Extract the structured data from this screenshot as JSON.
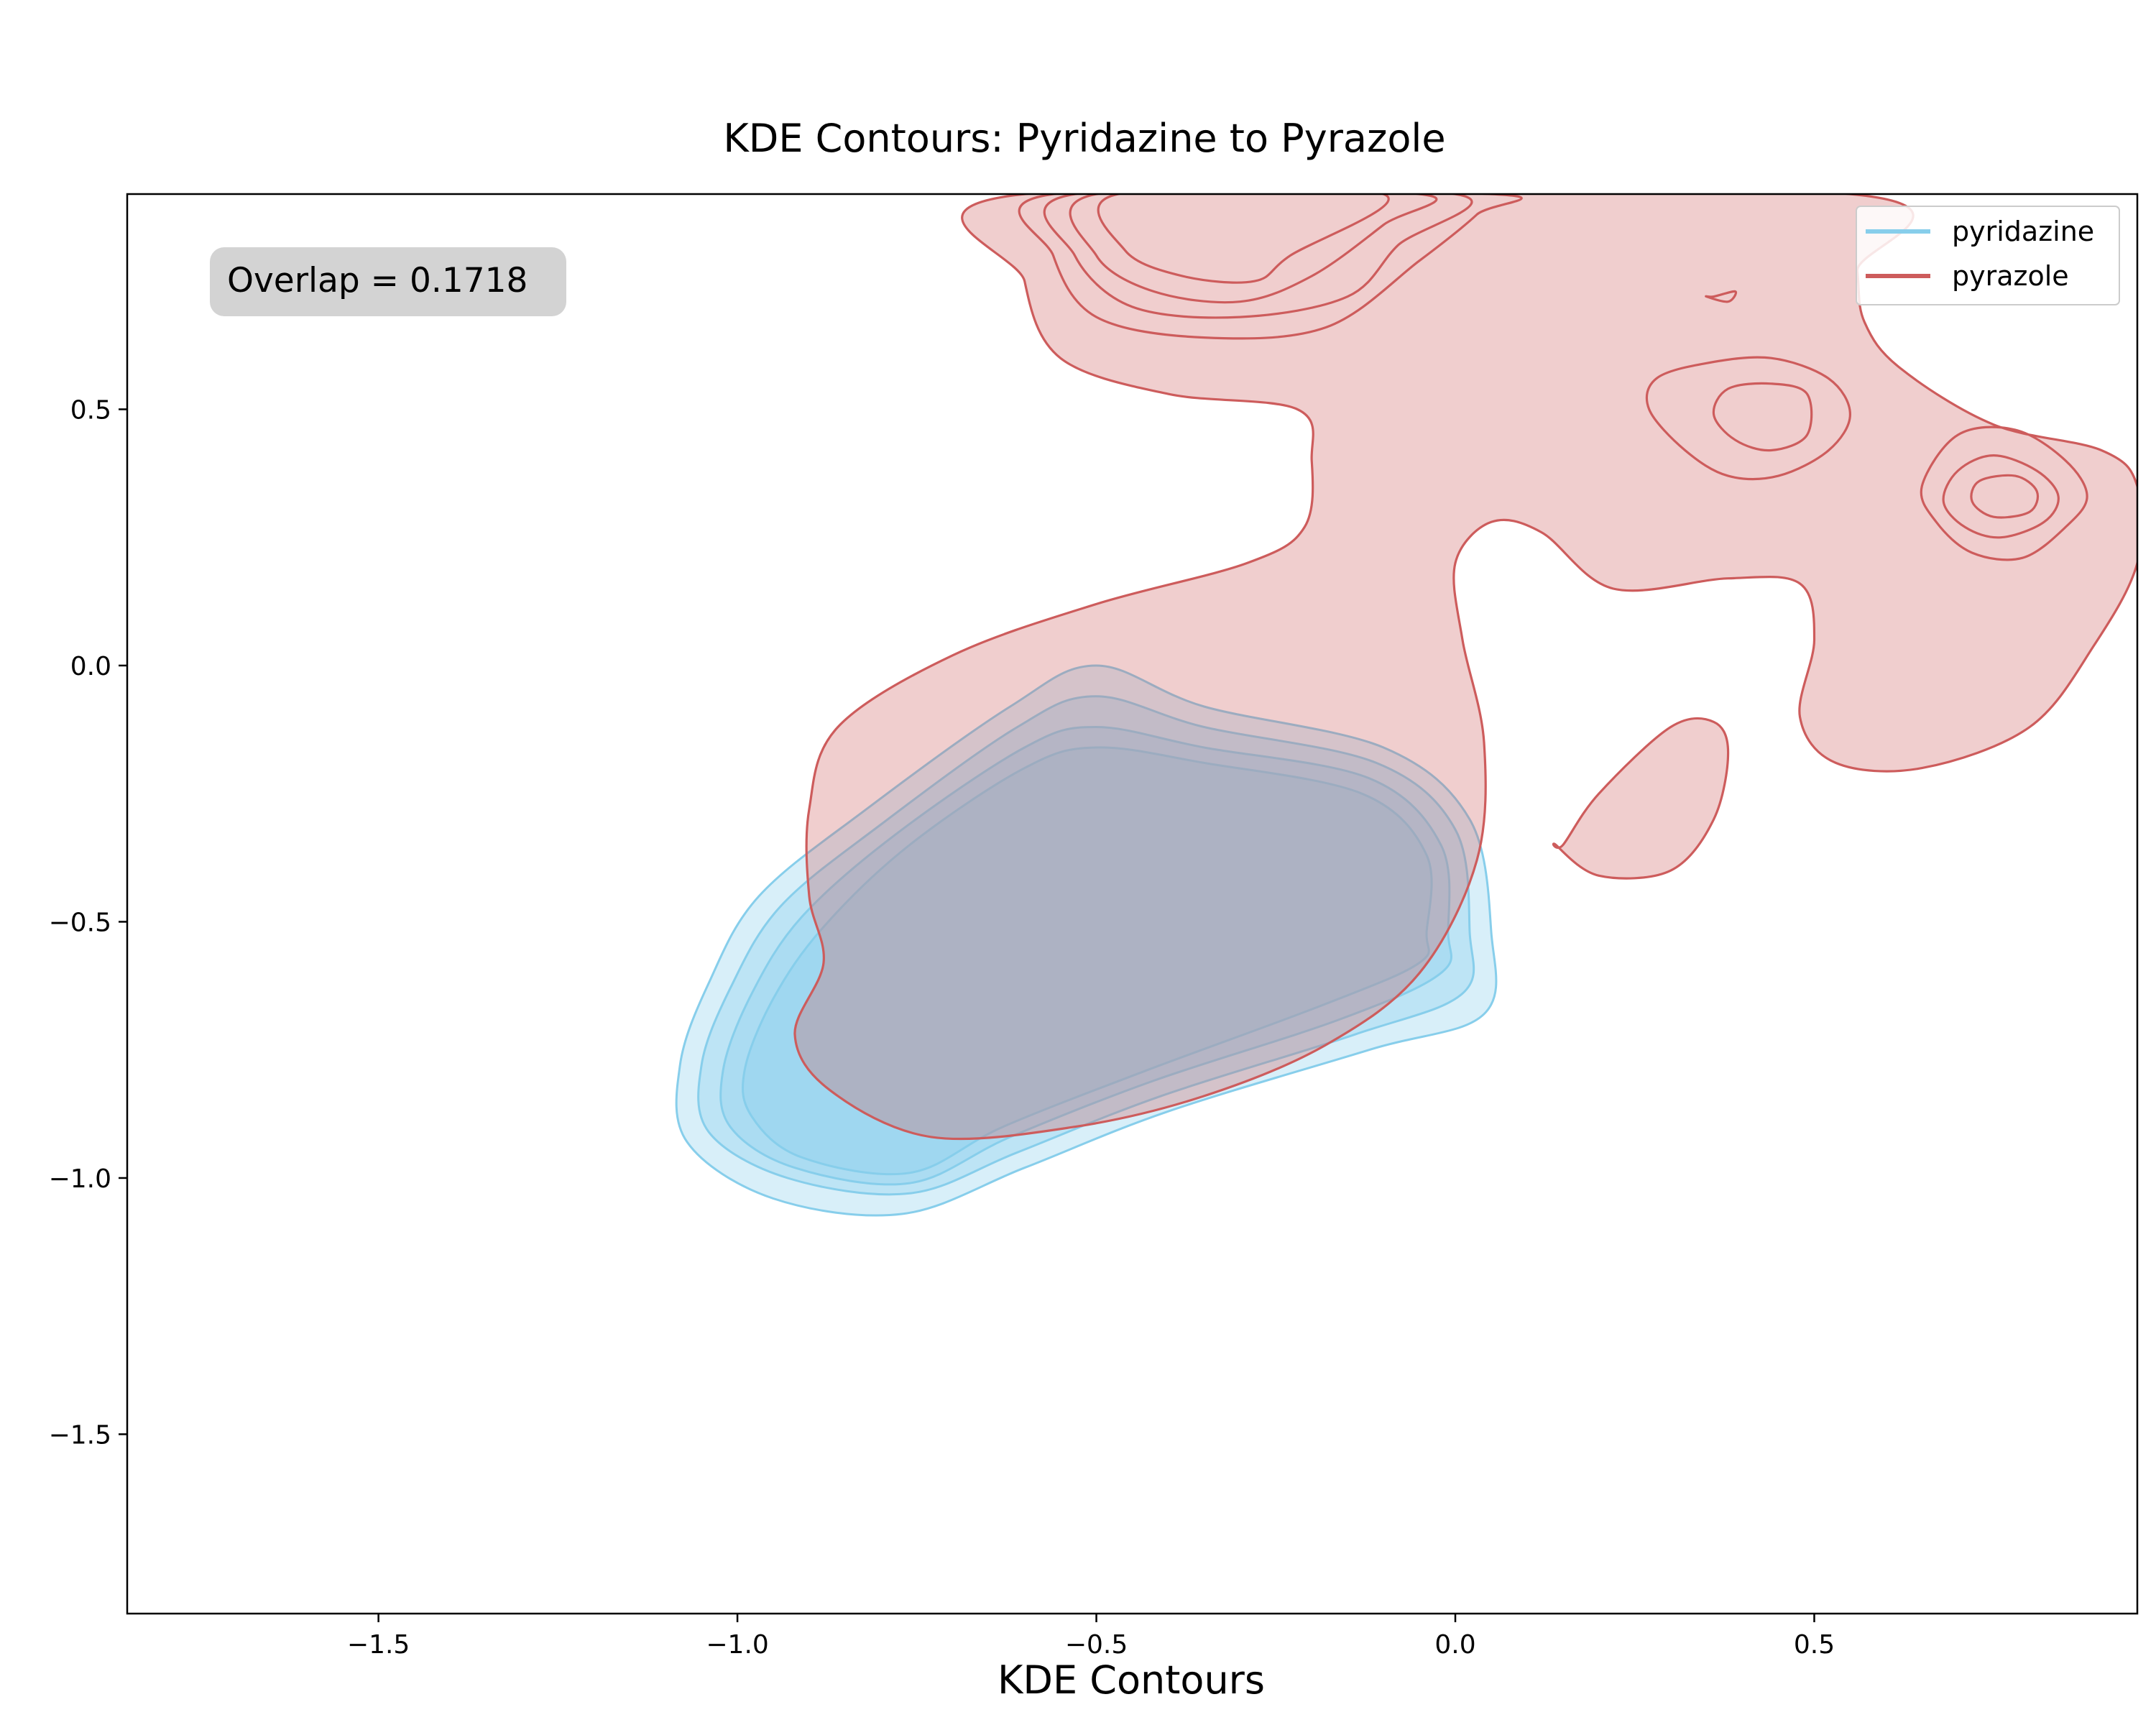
{
  "chart_data": {
    "type": "contour",
    "title": "KDE Contours: Pyridazine to Pyrazole",
    "xlabel": "KDE Contours",
    "ylabel": "",
    "xlim": [
      -1.85,
      0.95
    ],
    "ylim": [
      -1.85,
      0.92
    ],
    "xticks": [
      -1.5,
      -1.0,
      -0.5,
      0.0,
      0.5
    ],
    "xtick_labels": [
      "−1.5",
      "−1.0",
      "−0.5",
      "0.0",
      "0.5"
    ],
    "yticks": [
      0.5,
      0.0,
      -0.5,
      -1.0,
      -1.5
    ],
    "ytick_labels": [
      "0.5",
      "0.0",
      "−0.5",
      "−1.0",
      "−1.5"
    ],
    "grid": false,
    "legend_position": "top-right",
    "annotation": "Overlap = 0.1718",
    "series": [
      {
        "name": "pyridazine",
        "color": "#87ceeb",
        "contours": [
          [
            [
              -1.08,
              -0.78
            ],
            [
              -1.04,
              -0.62
            ],
            [
              -0.97,
              -0.45
            ],
            [
              -0.82,
              -0.28
            ],
            [
              -0.62,
              -0.08
            ],
            [
              -0.5,
              0.0
            ],
            [
              -0.35,
              -0.08
            ],
            [
              -0.1,
              -0.16
            ],
            [
              0.02,
              -0.3
            ],
            [
              0.05,
              -0.52
            ],
            [
              0.04,
              -0.68
            ],
            [
              -0.12,
              -0.75
            ],
            [
              -0.4,
              -0.87
            ],
            [
              -0.6,
              -0.98
            ],
            [
              -0.77,
              -1.07
            ],
            [
              -0.95,
              -1.04
            ],
            [
              -1.07,
              -0.93
            ]
          ],
          [
            [
              -1.05,
              -0.78
            ],
            [
              -1.01,
              -0.63
            ],
            [
              -0.94,
              -0.47
            ],
            [
              -0.8,
              -0.31
            ],
            [
              -0.61,
              -0.12
            ],
            [
              -0.5,
              -0.06
            ],
            [
              -0.35,
              -0.12
            ],
            [
              -0.11,
              -0.19
            ],
            [
              0.0,
              -0.32
            ],
            [
              0.02,
              -0.52
            ],
            [
              0.01,
              -0.64
            ],
            [
              -0.14,
              -0.72
            ],
            [
              -0.41,
              -0.84
            ],
            [
              -0.61,
              -0.95
            ],
            [
              -0.76,
              -1.03
            ],
            [
              -0.93,
              -1.0
            ],
            [
              -1.04,
              -0.91
            ]
          ],
          [
            [
              -1.02,
              -0.79
            ],
            [
              -0.98,
              -0.64
            ],
            [
              -0.91,
              -0.49
            ],
            [
              -0.78,
              -0.33
            ],
            [
              -0.6,
              -0.16
            ],
            [
              -0.5,
              -0.12
            ],
            [
              -0.35,
              -0.16
            ],
            [
              -0.12,
              -0.22
            ],
            [
              -0.02,
              -0.35
            ],
            [
              -0.01,
              -0.52
            ],
            [
              -0.02,
              -0.6
            ],
            [
              -0.16,
              -0.69
            ],
            [
              -0.42,
              -0.81
            ],
            [
              -0.62,
              -0.92
            ],
            [
              -0.76,
              -1.01
            ],
            [
              -0.92,
              -0.98
            ],
            [
              -1.01,
              -0.9
            ]
          ],
          [
            [
              -0.99,
              -0.79
            ],
            [
              -0.95,
              -0.65
            ],
            [
              -0.88,
              -0.51
            ],
            [
              -0.76,
              -0.35
            ],
            [
              -0.6,
              -0.2
            ],
            [
              -0.5,
              -0.16
            ],
            [
              -0.35,
              -0.19
            ],
            [
              -0.13,
              -0.25
            ],
            [
              -0.04,
              -0.37
            ],
            [
              -0.04,
              -0.52
            ],
            [
              -0.05,
              -0.58
            ],
            [
              -0.18,
              -0.66
            ],
            [
              -0.43,
              -0.79
            ],
            [
              -0.63,
              -0.9
            ],
            [
              -0.76,
              -0.99
            ],
            [
              -0.91,
              -0.96
            ],
            [
              -0.98,
              -0.88
            ]
          ]
        ]
      },
      {
        "name": "pyrazole",
        "color": "#cd5c5c",
        "contours": [
          [
            [
              -0.6,
              0.92
            ],
            [
              -0.6,
              0.75
            ],
            [
              -0.55,
              0.6
            ],
            [
              -0.4,
              0.53
            ],
            [
              -0.22,
              0.5
            ],
            [
              -0.2,
              0.4
            ],
            [
              -0.21,
              0.27
            ],
            [
              -0.29,
              0.2
            ],
            [
              -0.5,
              0.12
            ],
            [
              -0.7,
              0.02
            ],
            [
              -0.86,
              -0.12
            ],
            [
              -0.9,
              -0.28
            ],
            [
              -0.9,
              -0.45
            ],
            [
              -0.88,
              -0.58
            ],
            [
              -0.92,
              -0.72
            ],
            [
              -0.87,
              -0.83
            ],
            [
              -0.73,
              -0.92
            ],
            [
              -0.53,
              -0.9
            ],
            [
              -0.35,
              -0.84
            ],
            [
              -0.18,
              -0.74
            ],
            [
              -0.05,
              -0.6
            ],
            [
              0.03,
              -0.38
            ],
            [
              0.04,
              -0.15
            ],
            [
              0.01,
              0.05
            ],
            [
              0.0,
              0.2
            ],
            [
              0.05,
              0.28
            ],
            [
              0.12,
              0.26
            ],
            [
              0.22,
              0.15
            ],
            [
              0.38,
              0.17
            ],
            [
              0.48,
              0.16
            ],
            [
              0.5,
              0.05
            ],
            [
              0.48,
              -0.1
            ],
            [
              0.53,
              -0.19
            ],
            [
              0.65,
              -0.2
            ],
            [
              0.8,
              -0.12
            ],
            [
              0.89,
              0.04
            ],
            [
              0.95,
              0.2
            ],
            [
              0.95,
              0.35
            ],
            [
              0.9,
              0.42
            ],
            [
              0.75,
              0.47
            ],
            [
              0.62,
              0.58
            ],
            [
              0.57,
              0.67
            ],
            [
              0.56,
              0.77
            ],
            [
              0.55,
              0.92
            ]
          ],
          [
            [
              0.15,
              -0.35
            ],
            [
              0.2,
              -0.25
            ],
            [
              0.3,
              -0.12
            ],
            [
              0.36,
              -0.11
            ],
            [
              0.38,
              -0.17
            ],
            [
              0.36,
              -0.3
            ],
            [
              0.3,
              -0.4
            ],
            [
              0.2,
              -0.41
            ],
            [
              0.14,
              -0.35
            ]
          ],
          [
            [
              -0.56,
              0.92
            ],
            [
              -0.56,
              0.8
            ],
            [
              -0.5,
              0.68
            ],
            [
              -0.35,
              0.64
            ],
            [
              -0.18,
              0.66
            ],
            [
              -0.05,
              0.79
            ],
            [
              0.03,
              0.88
            ],
            [
              0.05,
              0.92
            ]
          ],
          [
            [
              -0.53,
              0.92
            ],
            [
              -0.53,
              0.8
            ],
            [
              -0.45,
              0.7
            ],
            [
              -0.3,
              0.68
            ],
            [
              -0.15,
              0.72
            ],
            [
              -0.08,
              0.82
            ],
            [
              0.0,
              0.92
            ]
          ],
          [
            [
              -0.5,
              0.92
            ],
            [
              -0.5,
              0.8
            ],
            [
              -0.42,
              0.73
            ],
            [
              -0.3,
              0.71
            ],
            [
              -0.2,
              0.76
            ],
            [
              -0.1,
              0.86
            ],
            [
              -0.05,
              0.92
            ]
          ],
          [
            [
              -0.47,
              0.92
            ],
            [
              -0.46,
              0.81
            ],
            [
              -0.38,
              0.76
            ],
            [
              -0.28,
              0.75
            ],
            [
              -0.23,
              0.8
            ],
            [
              -0.1,
              0.92
            ]
          ],
          [
            [
              0.27,
              0.5
            ],
            [
              0.32,
              0.42
            ],
            [
              0.38,
              0.37
            ],
            [
              0.45,
              0.37
            ],
            [
              0.52,
              0.42
            ],
            [
              0.55,
              0.49
            ],
            [
              0.52,
              0.56
            ],
            [
              0.44,
              0.6
            ],
            [
              0.35,
              0.59
            ],
            [
              0.28,
              0.56
            ]
          ],
          [
            [
              0.36,
              0.49
            ],
            [
              0.39,
              0.44
            ],
            [
              0.44,
              0.42
            ],
            [
              0.49,
              0.45
            ],
            [
              0.49,
              0.53
            ],
            [
              0.44,
              0.55
            ],
            [
              0.38,
              0.54
            ]
          ],
          [
            [
              0.65,
              0.35
            ],
            [
              0.67,
              0.28
            ],
            [
              0.72,
              0.22
            ],
            [
              0.79,
              0.21
            ],
            [
              0.85,
              0.27
            ],
            [
              0.88,
              0.33
            ],
            [
              0.85,
              0.4
            ],
            [
              0.78,
              0.46
            ],
            [
              0.7,
              0.45
            ]
          ],
          [
            [
              0.68,
              0.32
            ],
            [
              0.71,
              0.27
            ],
            [
              0.76,
              0.25
            ],
            [
              0.82,
              0.28
            ],
            [
              0.84,
              0.33
            ],
            [
              0.81,
              0.38
            ],
            [
              0.75,
              0.41
            ],
            [
              0.7,
              0.38
            ]
          ],
          [
            [
              0.72,
              0.32
            ],
            [
              0.75,
              0.29
            ],
            [
              0.8,
              0.3
            ],
            [
              0.81,
              0.34
            ],
            [
              0.78,
              0.37
            ],
            [
              0.73,
              0.36
            ]
          ],
          [
            [
              0.35,
              0.72
            ],
            [
              0.38,
              0.71
            ],
            [
              0.39,
              0.73
            ],
            [
              0.36,
              0.72
            ]
          ]
        ]
      }
    ]
  },
  "legend": {
    "items": [
      {
        "label": "pyridazine",
        "color": "#87ceeb"
      },
      {
        "label": "pyrazole",
        "color": "#cd5c5c"
      }
    ]
  }
}
